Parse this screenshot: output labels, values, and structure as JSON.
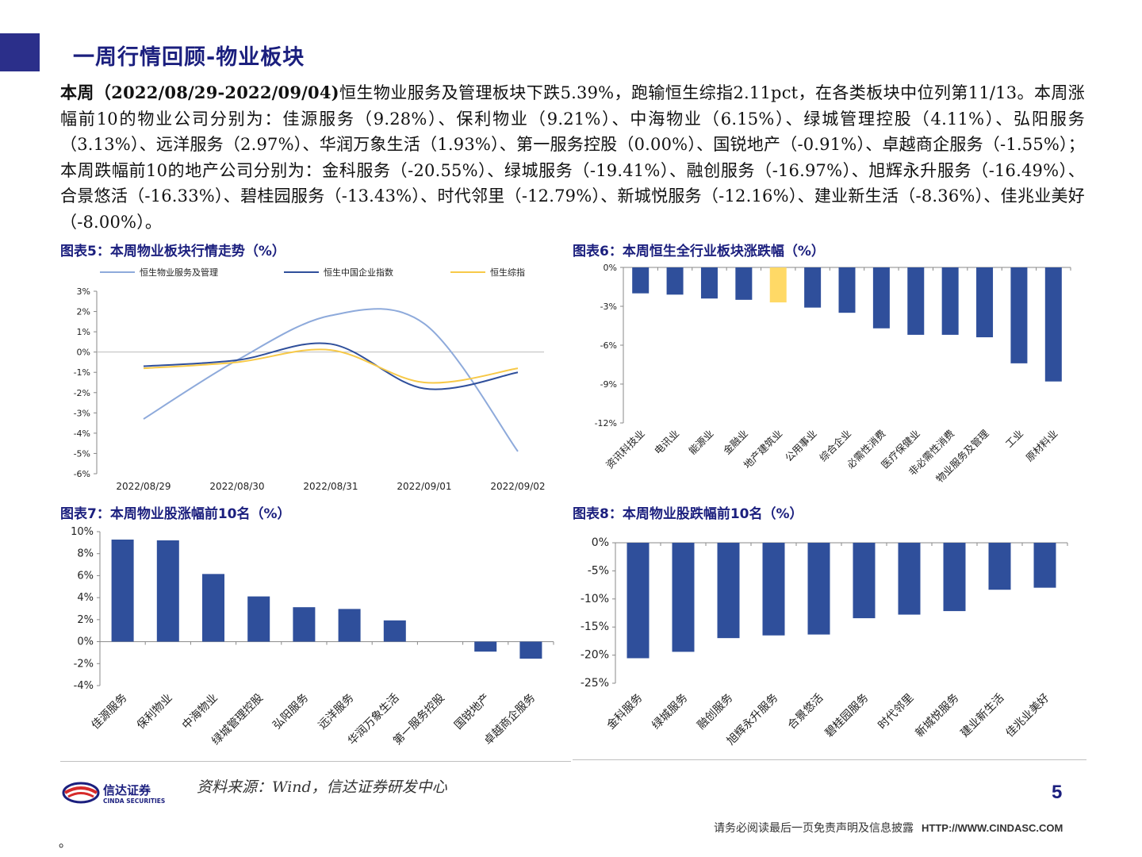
{
  "header": {
    "title": "一周行情回顾-物业板块"
  },
  "summary": {
    "lead": "本周（2022/08/29-2022/09/04)",
    "text": "恒生物业服务及管理板块下跌5.39%，跑输恒生综指2.11pct，在各类板块中位列第11/13。本周涨幅前10的物业公司分别为：佳源服务（9.28%）、保利物业（9.21%）、中海物业（6.15%）、绿城管理控股（4.11%）、弘阳服务（3.13%）、远洋服务（2.97%）、华润万象生活（1.93%）、第一服务控股（0.00%）、国锐地产（-0.91%）、卓越商企服务（-1.55%）；本周跌幅前10的地产公司分别为：金科服务（-20.55%）、绿城服务（-19.41%）、融创服务（-16.97%）、旭辉永升服务（-16.49%）、合景悠活（-16.33%）、碧桂园服务（-13.43%）、时代邻里（-12.79%）、新城悦服务（-12.16%）、建业新生活（-8.36%）、佳兆业美好（-8.00%）。"
  },
  "figures": {
    "fig5_title": "图表5：本周物业板块行情走势（%）",
    "fig6_title": "图表6：本周恒生全行业板块涨跌幅（%）",
    "fig7_title": "图表7：本周物业股涨幅前10名（%）",
    "fig8_title": "图表8：本周物业股跌幅前10名（%）"
  },
  "chart_data": [
    {
      "type": "line",
      "x": [
        "2022/08/29",
        "2022/08/30",
        "2022/08/31",
        "2022/09/01",
        "2022/09/02"
      ],
      "series": [
        {
          "name": "恒生物业服务及管理",
          "values": [
            -3.3,
            -0.4,
            1.8,
            1.4,
            -4.9
          ],
          "color": "#8eaadb"
        },
        {
          "name": "恒生中国企业指数",
          "values": [
            -0.7,
            -0.4,
            0.4,
            -1.8,
            -1.0
          ],
          "color": "#2f4f9b"
        },
        {
          "name": "恒生综指",
          "values": [
            -0.8,
            -0.5,
            0.1,
            -1.5,
            -0.8
          ],
          "color": "#f7c948"
        }
      ],
      "yticks": [
        "3%",
        "2%",
        "1%",
        "0%",
        "-1%",
        "-2%",
        "-3%",
        "-4%",
        "-5%",
        "-6%"
      ],
      "ylim": [
        -6,
        3
      ],
      "legend": "top"
    },
    {
      "type": "bar",
      "categories": [
        "资讯科技业",
        "电讯业",
        "能源业",
        "金融业",
        "地产建筑业",
        "公用事业",
        "综合企业",
        "必需性消费",
        "医疗保健业",
        "非必需性消费",
        "物业服务及管理",
        "工业",
        "原材料业"
      ],
      "values": [
        -2.0,
        -2.1,
        -2.4,
        -2.5,
        -2.7,
        -3.1,
        -3.5,
        -4.7,
        -5.2,
        -5.2,
        -5.39,
        -7.4,
        -8.8
      ],
      "highlight_index": 4,
      "bar_color": "#2f4f9b",
      "highlight_color": "#ffd966",
      "yticks": [
        "0%",
        "-3%",
        "-6%",
        "-9%",
        "-12%"
      ],
      "ylim": [
        -12,
        0
      ]
    },
    {
      "type": "bar",
      "categories": [
        "佳源服务",
        "保利物业",
        "中海物业",
        "绿城管理控股",
        "弘阳服务",
        "远洋服务",
        "华润万象生活",
        "第一服务控股",
        "国锐地产",
        "卓越商企服务"
      ],
      "values": [
        9.28,
        9.21,
        6.15,
        4.11,
        3.13,
        2.97,
        1.93,
        0.0,
        -0.91,
        -1.55
      ],
      "bar_color": "#2f4f9b",
      "yticks": [
        "10%",
        "8%",
        "6%",
        "4%",
        "2%",
        "0%",
        "-2%",
        "-4%"
      ],
      "ylim": [
        -4,
        10
      ]
    },
    {
      "type": "bar",
      "categories": [
        "金科服务",
        "绿城服务",
        "融创服务",
        "旭辉永升服务",
        "合景悠活",
        "碧桂园服务",
        "时代邻里",
        "新城悦服务",
        "建业新生活",
        "佳兆业美好"
      ],
      "values": [
        -20.55,
        -19.41,
        -16.97,
        -16.49,
        -16.33,
        -13.43,
        -12.79,
        -12.16,
        -8.36,
        -8.0
      ],
      "bar_color": "#2f4f9b",
      "yticks": [
        "0%",
        "-5%",
        "-10%",
        "-15%",
        "-20%",
        "-25%"
      ],
      "ylim": [
        -25,
        0
      ]
    }
  ],
  "footer": {
    "logo_cn": "信达证券",
    "logo_en": "CINDA SECURITIES",
    "source": "资料来源：Wind，信达证券研发中心",
    "page": "5",
    "disclaimer": "请务必阅读最后一页免责声明及信息披露",
    "url": "HTTP://WWW.CINDASC.COM",
    "trailing": "。"
  }
}
